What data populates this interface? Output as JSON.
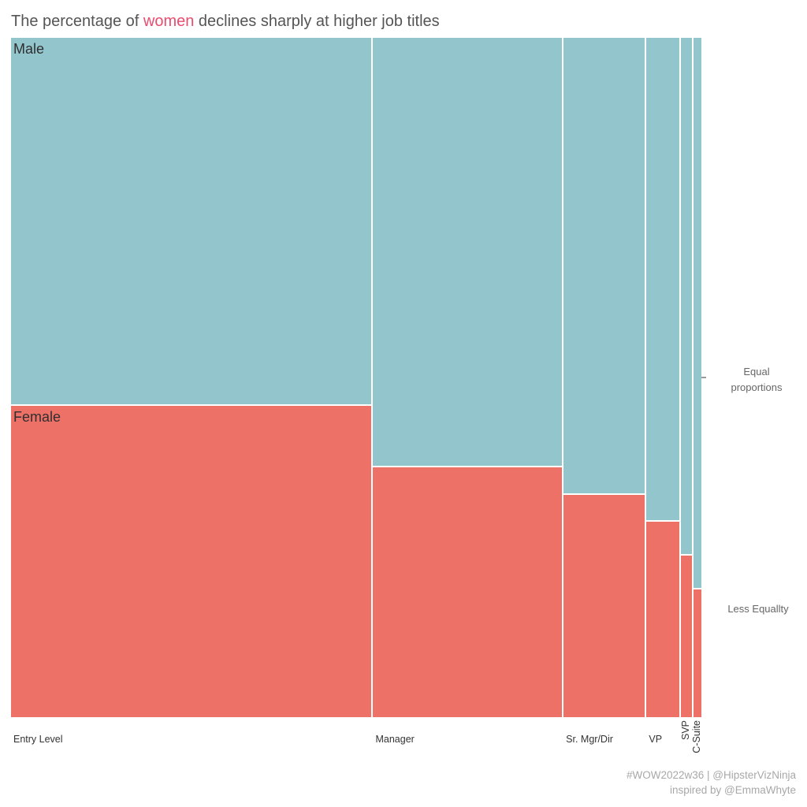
{
  "title": {
    "prefix": "The percentage of ",
    "highlight": "women",
    "suffix": " declines sharply at higher job titles"
  },
  "series_labels": {
    "male": "Male",
    "female": "Female"
  },
  "annotations": {
    "equal_top": "Equal",
    "equal_bottom": "proportions",
    "less_equality": "Less Equallty"
  },
  "footer": {
    "line1": "#WOW2022w36 | @HipsterVizNinja",
    "line2": "inspired by @EmmaWhyte"
  },
  "colors": {
    "male": "#92c5cc",
    "female": "#ee7168",
    "title_text": "#555555",
    "title_highlight": "#e84c6e",
    "axis_text": "#333333",
    "annotation_text": "#666666",
    "footer_text": "#a8a8a8"
  },
  "chart_data": {
    "type": "marimekko",
    "title": "The percentage of women declines sharply at higher job titles",
    "categories": [
      "Entry Level",
      "Manager",
      "Sr. Mgr/Dir",
      "VP",
      "SVP",
      "C-Suite"
    ],
    "column_width_pct": [
      52.3,
      27.4,
      11.8,
      4.8,
      1.6,
      1.1
    ],
    "series": [
      {
        "name": "Male",
        "color": "#92c5cc",
        "values_pct": [
          54,
          63,
          67,
          71,
          76,
          81
        ]
      },
      {
        "name": "Female",
        "color": "#ee7168",
        "values_pct": [
          46,
          37,
          33,
          29,
          24,
          19
        ]
      }
    ],
    "reference_line": {
      "value_pct": 50,
      "label": "Equal proportions"
    },
    "orientation": "columns stacked male-top female-bottom, widths = share of workforce",
    "grid": false
  }
}
